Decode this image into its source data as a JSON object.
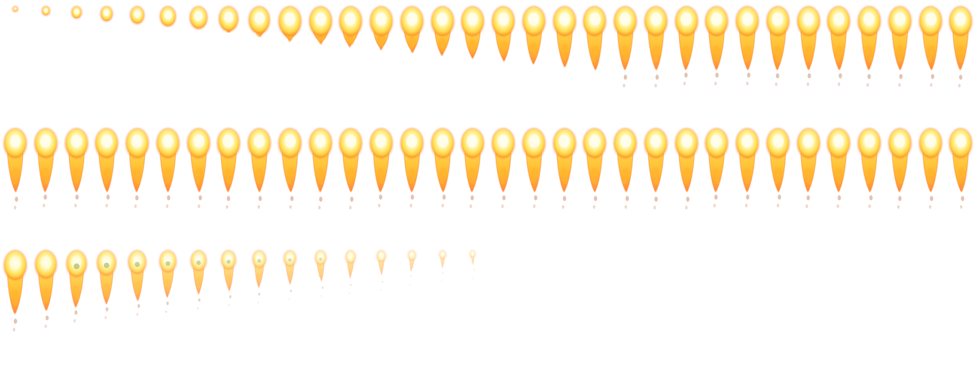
{
  "sprite_sheet": {
    "asset": "flame-jet-animation",
    "columns": 32,
    "rows": 3,
    "frame_count": 80,
    "background": "#ffffff",
    "colors": {
      "core": "#fffef0",
      "hot": "#fff6a8",
      "body": "#ffd84a",
      "flame": "#ffb52e",
      "edge": "#ff8a3c",
      "ember": "#e0845a",
      "soot": "#d9a891"
    }
  }
}
